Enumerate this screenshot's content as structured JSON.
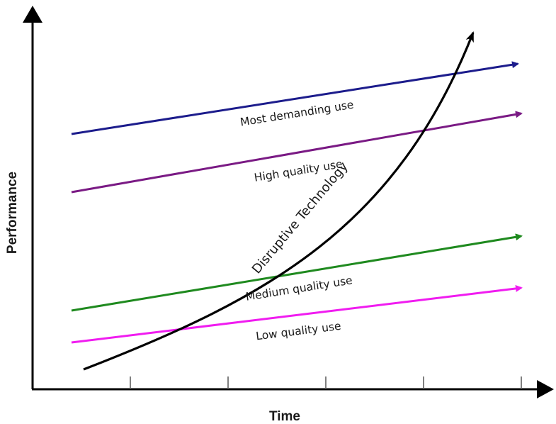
{
  "axes": {
    "x_label": "Time",
    "y_label": "Performance"
  },
  "lines": [
    {
      "label": "Most demanding use",
      "color": "#1c1c8c"
    },
    {
      "label": "High quality use",
      "color": "#7a1a84"
    },
    {
      "label": "Medium quality use",
      "color": "#1f8a1f"
    },
    {
      "label": "Low quality use",
      "color": "#f01cf0"
    }
  ],
  "curve": {
    "label": "Disruptive Technology",
    "color": "#000000"
  }
}
